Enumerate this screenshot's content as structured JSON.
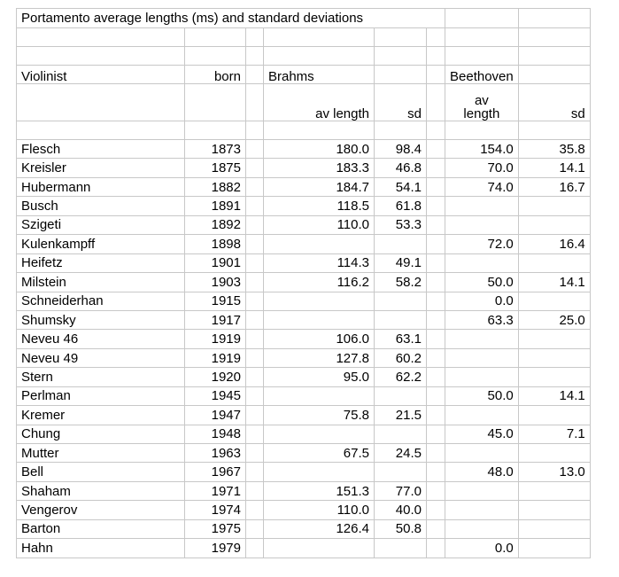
{
  "title": "Portamento average lengths (ms) and standard deviations",
  "headers": {
    "violinist": "Violinist",
    "born": "born",
    "brahms": "Brahms",
    "beethoven": "Beethoven",
    "av_length": "av length",
    "sd": "sd",
    "beethoven_av_line1": "av",
    "beethoven_av_line2": "length",
    "beethoven_sd": "sd"
  },
  "rows": [
    {
      "name": "Flesch",
      "born": "1873",
      "brahms_av": "180.0",
      "brahms_sd": "98.4",
      "beethoven_av": "154.0",
      "beethoven_sd": "35.8"
    },
    {
      "name": "Kreisler",
      "born": "1875",
      "brahms_av": "183.3",
      "brahms_sd": "46.8",
      "beethoven_av": "70.0",
      "beethoven_sd": "14.1"
    },
    {
      "name": "Hubermann",
      "born": "1882",
      "brahms_av": "184.7",
      "brahms_sd": "54.1",
      "beethoven_av": "74.0",
      "beethoven_sd": "16.7"
    },
    {
      "name": "Busch",
      "born": "1891",
      "brahms_av": "118.5",
      "brahms_sd": "61.8",
      "beethoven_av": "",
      "beethoven_sd": ""
    },
    {
      "name": "Szigeti",
      "born": "1892",
      "brahms_av": "110.0",
      "brahms_sd": "53.3",
      "beethoven_av": "",
      "beethoven_sd": ""
    },
    {
      "name": "Kulenkampff",
      "born": "1898",
      "brahms_av": "",
      "brahms_sd": "",
      "beethoven_av": "72.0",
      "beethoven_sd": "16.4"
    },
    {
      "name": "Heifetz",
      "born": "1901",
      "brahms_av": "114.3",
      "brahms_sd": "49.1",
      "beethoven_av": "",
      "beethoven_sd": ""
    },
    {
      "name": "Milstein",
      "born": "1903",
      "brahms_av": "116.2",
      "brahms_sd": "58.2",
      "beethoven_av": "50.0",
      "beethoven_sd": "14.1"
    },
    {
      "name": "Schneiderhan",
      "born": "1915",
      "brahms_av": "",
      "brahms_sd": "",
      "beethoven_av": "0.0",
      "beethoven_sd": ""
    },
    {
      "name": "Shumsky",
      "born": "1917",
      "brahms_av": "",
      "brahms_sd": "",
      "beethoven_av": "63.3",
      "beethoven_sd": "25.0"
    },
    {
      "name": "Neveu 46",
      "born": "1919",
      "brahms_av": "106.0",
      "brahms_sd": "63.1",
      "beethoven_av": "",
      "beethoven_sd": ""
    },
    {
      "name": "Neveu 49",
      "born": "1919",
      "brahms_av": "127.8",
      "brahms_sd": "60.2",
      "beethoven_av": "",
      "beethoven_sd": ""
    },
    {
      "name": "Stern",
      "born": "1920",
      "brahms_av": "95.0",
      "brahms_sd": "62.2",
      "beethoven_av": "",
      "beethoven_sd": ""
    },
    {
      "name": "Perlman",
      "born": "1945",
      "brahms_av": "",
      "brahms_sd": "",
      "beethoven_av": "50.0",
      "beethoven_sd": "14.1"
    },
    {
      "name": "Kremer",
      "born": "1947",
      "brahms_av": "75.8",
      "brahms_sd": "21.5",
      "beethoven_av": "",
      "beethoven_sd": ""
    },
    {
      "name": "Chung",
      "born": "1948",
      "brahms_av": "",
      "brahms_sd": "",
      "beethoven_av": "45.0",
      "beethoven_sd": "7.1"
    },
    {
      "name": "Mutter",
      "born": "1963",
      "brahms_av": "67.5",
      "brahms_sd": "24.5",
      "beethoven_av": "",
      "beethoven_sd": ""
    },
    {
      "name": "Bell",
      "born": "1967",
      "brahms_av": "",
      "brahms_sd": "",
      "beethoven_av": "48.0",
      "beethoven_sd": "13.0"
    },
    {
      "name": "Shaham",
      "born": "1971",
      "brahms_av": "151.3",
      "brahms_sd": "77.0",
      "beethoven_av": "",
      "beethoven_sd": ""
    },
    {
      "name": "Vengerov",
      "born": "1974",
      "brahms_av": "110.0",
      "brahms_sd": "40.0",
      "beethoven_av": "",
      "beethoven_sd": ""
    },
    {
      "name": "Barton",
      "born": "1975",
      "brahms_av": "126.4",
      "brahms_sd": "50.8",
      "beethoven_av": "",
      "beethoven_sd": ""
    },
    {
      "name": "Hahn",
      "born": "1979",
      "brahms_av": "",
      "brahms_sd": "",
      "beethoven_av": "0.0",
      "beethoven_sd": ""
    }
  ]
}
